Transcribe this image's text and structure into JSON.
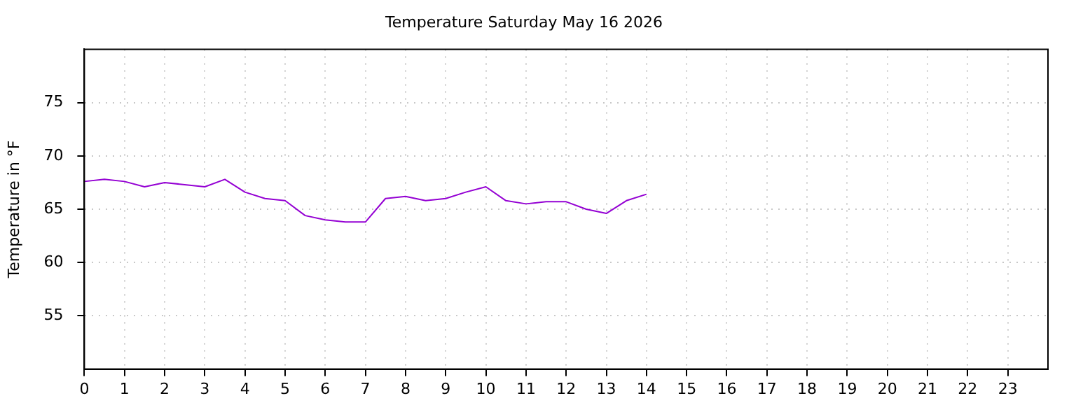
{
  "chart_data": {
    "type": "line",
    "title": "Temperature Saturday May 16 2026",
    "ylabel": "Temperature in °F",
    "x": [
      0,
      0.5,
      1,
      1.5,
      2,
      2.5,
      3,
      3.5,
      4,
      4.5,
      5,
      5.5,
      6,
      6.5,
      7,
      7.5,
      8,
      8.5,
      9,
      9.5,
      10,
      10.5,
      11,
      11.5,
      12,
      12.5,
      13,
      13.5,
      14
    ],
    "series": [
      {
        "color": "#9400d3",
        "values": [
          67.6,
          67.8,
          67.6,
          67.1,
          67.5,
          67.3,
          67.1,
          67.8,
          66.6,
          66.0,
          65.8,
          64.4,
          64.0,
          63.8,
          63.8,
          66.0,
          66.2,
          65.8,
          66.0,
          66.6,
          67.1,
          65.8,
          65.5,
          65.7,
          65.7,
          65.0,
          64.6,
          65.8,
          66.4
        ]
      }
    ],
    "xlim": [
      0,
      24
    ],
    "xticks": [
      0,
      1,
      2,
      3,
      4,
      5,
      6,
      7,
      8,
      9,
      10,
      11,
      12,
      13,
      14,
      15,
      16,
      17,
      18,
      19,
      20,
      21,
      22,
      23
    ],
    "ylim": [
      50,
      80
    ],
    "yticks": [
      55,
      60,
      65,
      70,
      75
    ],
    "grid": true,
    "legend": false,
    "marker": "none",
    "line_style": "solid"
  }
}
